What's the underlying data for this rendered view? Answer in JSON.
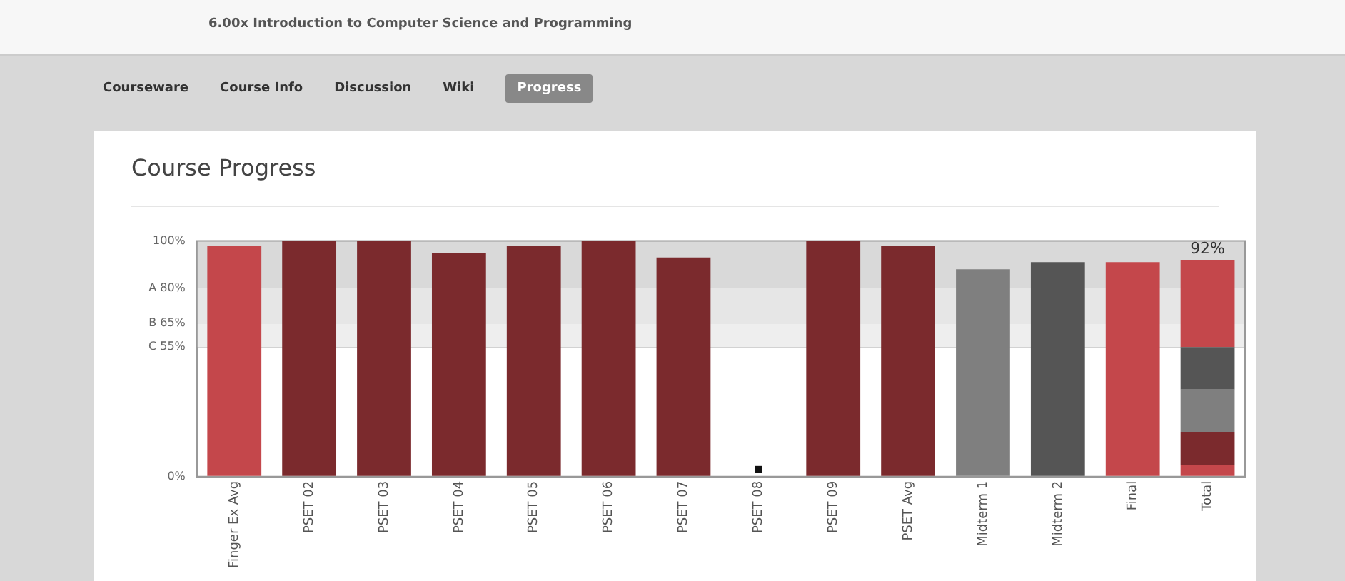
{
  "chart_data": {
    "type": "bar",
    "title": "Course Progress",
    "subtitle": "6.00x Introduction to Computer Science and Programming",
    "annotations": [
      "Courseware",
      "Course Info",
      "Discussion",
      "Wiki",
      "Progress",
      {
        "text": "▪",
        "x": "PSET 08",
        "y": 3
      }
    ],
    "categories": [
      "Finger Ex Avg",
      "PSET 02",
      "PSET 03",
      "PSET 04",
      "PSET 05",
      "PSET 06",
      "PSET 07",
      "PSET 08",
      "PSET 09",
      "PSET Avg",
      "Midterm 1",
      "Midterm 2",
      "Final",
      "Total"
    ],
    "stacked": true,
    "series": [
      {
        "colors": [
          "#c4474b",
          "#7b2a2d",
          "#7b2a2d",
          "#7b2a2d",
          "#7b2a2d",
          "#7b2a2d",
          "#7b2a2d",
          "#7b2a2d",
          "#7b2a2d",
          "#7b2a2d",
          "#7f7f7f",
          "#555555",
          "#c4474b",
          "#c4474b"
        ],
        "values": [
          98,
          100,
          100,
          95,
          98,
          100,
          93,
          0,
          100,
          98,
          88,
          91,
          91,
          5
        ]
      },
      {
        "color": "#7b2a2d",
        "values": [
          null,
          null,
          null,
          null,
          null,
          null,
          null,
          null,
          null,
          null,
          null,
          null,
          null,
          14
        ]
      },
      {
        "color": "#7f7f7f",
        "values": [
          null,
          null,
          null,
          null,
          null,
          null,
          null,
          null,
          null,
          null,
          null,
          null,
          null,
          18
        ]
      },
      {
        "color": "#555555",
        "values": [
          null,
          null,
          null,
          null,
          null,
          null,
          null,
          null,
          null,
          null,
          null,
          null,
          null,
          18
        ]
      },
      {
        "color": "#c4474b",
        "values": [
          null,
          null,
          null,
          null,
          null,
          null,
          null,
          null,
          null,
          null,
          null,
          null,
          null,
          37
        ]
      }
    ],
    "totals": [
      null,
      null,
      null,
      null,
      null,
      null,
      null,
      null,
      null,
      null,
      null,
      null,
      null,
      "92%"
    ],
    "ylim": [
      0,
      100
    ],
    "yticks": [
      {
        "value": 0,
        "label": "0%"
      },
      {
        "value": 55,
        "label": "C 55%"
      },
      {
        "value": 65,
        "label": "B 65%"
      },
      {
        "value": 80,
        "label": "A 80%"
      },
      {
        "value": 100,
        "label": "100%"
      }
    ],
    "bands": [
      {
        "axis": "y",
        "from": 80,
        "to": 100,
        "color": "#d9d9d9"
      },
      {
        "axis": "y",
        "from": 65,
        "to": 80,
        "color": "#e6e6e6"
      },
      {
        "axis": "y",
        "from": 55,
        "to": 65,
        "color": "#eeeeee"
      }
    ],
    "grid": "y",
    "legend": false
  }
}
